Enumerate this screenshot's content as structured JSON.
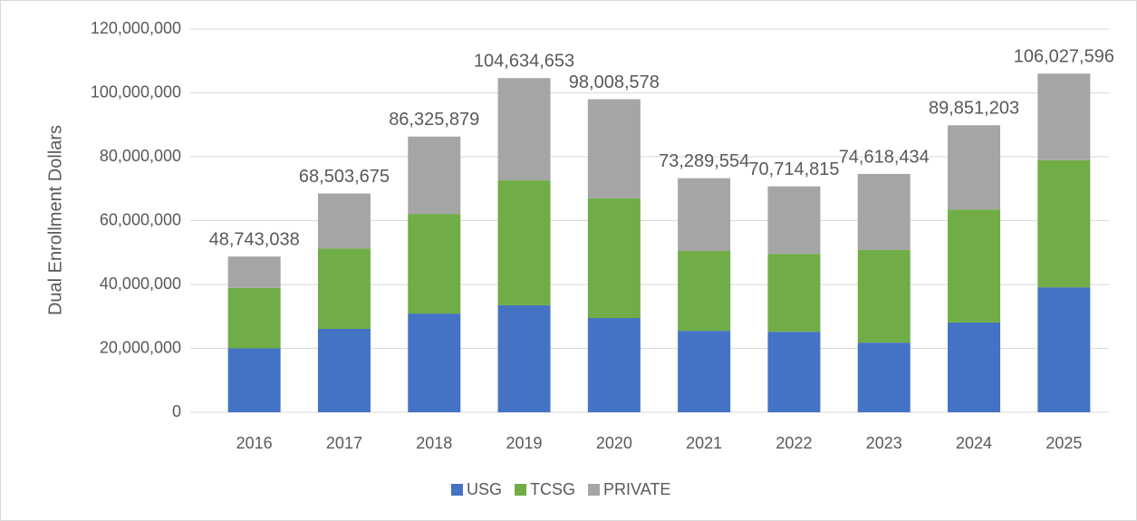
{
  "chart_data": {
    "type": "stacked_bar",
    "y_label": "Dual Enrollment Dollars",
    "categories": [
      "2016",
      "2017",
      "2018",
      "2019",
      "2020",
      "2021",
      "2022",
      "2023",
      "2024",
      "2025"
    ],
    "series": [
      {
        "name": "USG",
        "color": "#4472c4",
        "values": [
          20000000,
          26100000,
          30900000,
          33500000,
          29500000,
          25500000,
          25200000,
          21800000,
          28100000,
          39100000
        ]
      },
      {
        "name": "TCSG",
        "color": "#70ad47",
        "values": [
          18900000,
          25200000,
          31200000,
          39100000,
          37500000,
          25000000,
          24400000,
          29000000,
          35400000,
          39800000
        ]
      },
      {
        "name": "PRIVATE",
        "color": "#a5a5a5",
        "values": [
          9843038,
          17203675,
          24225879,
          32034653,
          31008578,
          22789554,
          21114815,
          23818434,
          26351203,
          27127596
        ]
      }
    ],
    "totals": [
      48743038,
      68503675,
      86325879,
      104634653,
      98008578,
      73289554,
      70714815,
      74618434,
      89851203,
      106027596
    ],
    "total_labels": [
      "48,743,038",
      "68,503,675",
      "86,325,879",
      "104,634,653",
      "98,008,578",
      "73,289,554",
      "70,714,815",
      "74,618,434",
      "89,851,203",
      "106,027,596"
    ],
    "ylim": [
      0,
      120000000
    ],
    "yticks": [
      0,
      {
        "value": 20000000,
        "label": "20,000,000"
      },
      {
        "value": 40000000,
        "label": "40,000,000"
      },
      {
        "value": 60000000,
        "label": "60,000,000"
      },
      {
        "value": 80000000,
        "label": "80,000,000"
      },
      {
        "value": 100000000,
        "label": "100,000,000"
      },
      {
        "value": 120000000,
        "label": "120,000,000"
      }
    ],
    "grid": true,
    "legend": "bottom"
  }
}
